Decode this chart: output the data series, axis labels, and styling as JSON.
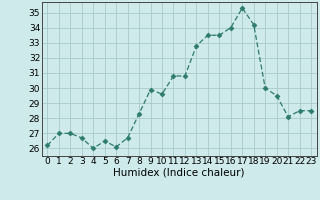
{
  "x": [
    0,
    1,
    2,
    3,
    4,
    5,
    6,
    7,
    8,
    9,
    10,
    11,
    12,
    13,
    14,
    15,
    16,
    17,
    18,
    19,
    20,
    21,
    22,
    23
  ],
  "y": [
    26.2,
    27.0,
    27.0,
    26.7,
    26.0,
    26.5,
    26.1,
    26.7,
    28.3,
    29.9,
    29.6,
    30.8,
    30.8,
    32.8,
    33.5,
    33.5,
    34.0,
    35.3,
    34.2,
    30.0,
    29.5,
    28.1,
    28.5,
    28.5
  ],
  "line_color": "#2d7a6e",
  "marker": "D",
  "marker_size": 2.5,
  "bg_color": "#ceeaea",
  "grid_color_major": "#aacaca",
  "grid_color_minor": "#bcd8d8",
  "xlabel": "Humidex (Indice chaleur)",
  "xlim": [
    -0.5,
    23.5
  ],
  "ylim": [
    25.5,
    35.7
  ],
  "yticks": [
    26,
    27,
    28,
    29,
    30,
    31,
    32,
    33,
    34,
    35
  ],
  "xticks": [
    0,
    1,
    2,
    3,
    4,
    5,
    6,
    7,
    8,
    9,
    10,
    11,
    12,
    13,
    14,
    15,
    16,
    17,
    18,
    19,
    20,
    21,
    22,
    23
  ],
  "tick_fontsize": 6.5,
  "label_fontsize": 7.5
}
